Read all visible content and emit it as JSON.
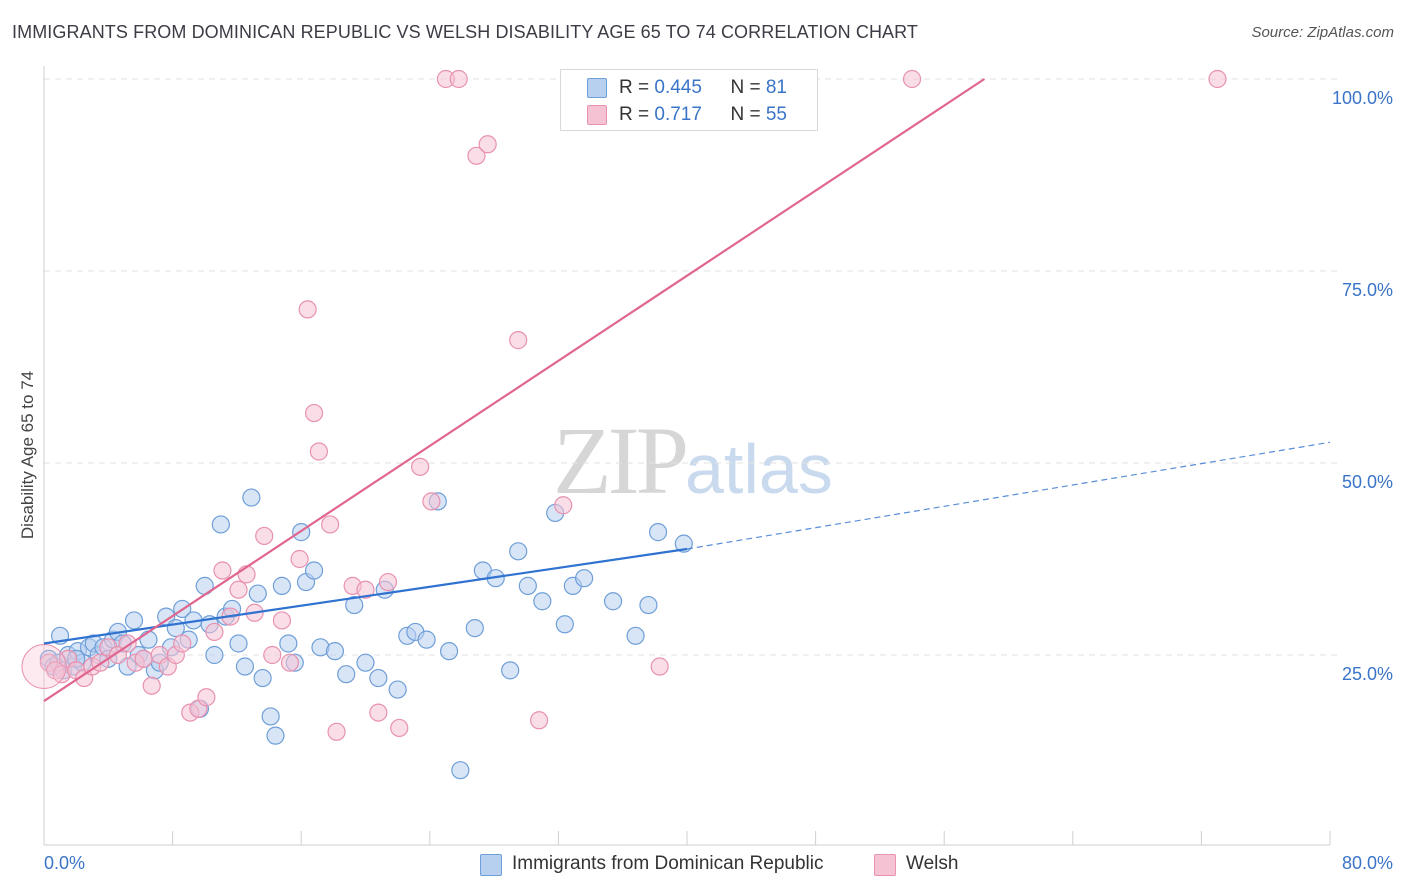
{
  "title": "IMMIGRANTS FROM DOMINICAN REPUBLIC VS WELSH DISABILITY AGE 65 TO 74 CORRELATION CHART",
  "source": "Source: ZipAtlas.com",
  "watermark": {
    "zip": "ZIP",
    "atlas": "atlas"
  },
  "legend": {
    "rows": [
      {
        "r_label": "R = ",
        "r_value": "0.445",
        "n_label": "N = ",
        "n_value": "81"
      },
      {
        "r_label": "R = ",
        "r_value": "0.717",
        "n_label": "N = ",
        "n_value": "55"
      }
    ]
  },
  "bottom_legend": [
    "Immigrants from Dominican Republic",
    "Welsh"
  ],
  "colors": {
    "blue_fill": "#b8d0f0",
    "blue_stroke": "#6f9fd8",
    "blue_line": "#2f72d0",
    "pink_fill": "#f5c2d4",
    "pink_stroke": "#e891b0",
    "pink_line": "#e06690",
    "tick_text": "#3a74c8",
    "grid": "#e2e2e2"
  },
  "chart_data": {
    "type": "scatter",
    "title": "IMMIGRANTS FROM DOMINICAN REPUBLIC VS WELSH DISABILITY AGE 65 TO 74 CORRELATION CHART",
    "xlabel": "",
    "ylabel": "Disability Age 65 to 74",
    "xlim": [
      0,
      80
    ],
    "ylim": [
      0,
      102
    ],
    "x_tick_labels": [
      {
        "value": 0,
        "label": "0.0%"
      },
      {
        "value": 80,
        "label": "80.0%"
      }
    ],
    "y_tick_labels": [
      {
        "value": 25,
        "label": "25.0%"
      },
      {
        "value": 50,
        "label": "50.0%"
      },
      {
        "value": 75,
        "label": "75.0%"
      },
      {
        "value": 100,
        "label": "100.0%"
      }
    ],
    "legend_position": "top-center",
    "grid": true,
    "series": [
      {
        "name": "Immigrants from Dominican Republic",
        "r": 0.445,
        "n": 81,
        "trend": {
          "x": [
            0,
            40
          ],
          "y": [
            26.5,
            38.8
          ],
          "dashed_to": [
            80,
            52.7
          ]
        },
        "points": [
          [
            0.3,
            24.5
          ],
          [
            0.6,
            23.5
          ],
          [
            0.9,
            24
          ],
          [
            1.2,
            23
          ],
          [
            1.5,
            25
          ],
          [
            1.8,
            23.5
          ],
          [
            2.1,
            25.5
          ],
          [
            2.4,
            24
          ],
          [
            2.8,
            26
          ],
          [
            3.1,
            26.5
          ],
          [
            3.4,
            25
          ],
          [
            3.7,
            26
          ],
          [
            4.0,
            24.5
          ],
          [
            4.3,
            27
          ],
          [
            4.6,
            28
          ],
          [
            4.9,
            26.5
          ],
          [
            5.2,
            23.5
          ],
          [
            5.6,
            29.5
          ],
          [
            5.9,
            25
          ],
          [
            6.2,
            24.5
          ],
          [
            6.5,
            27
          ],
          [
            6.9,
            23
          ],
          [
            7.2,
            24
          ],
          [
            7.6,
            30
          ],
          [
            7.9,
            26
          ],
          [
            8.2,
            28.5
          ],
          [
            8.6,
            31
          ],
          [
            9.0,
            27
          ],
          [
            9.3,
            29.5
          ],
          [
            9.7,
            18
          ],
          [
            10.0,
            34
          ],
          [
            10.3,
            29
          ],
          [
            10.6,
            25
          ],
          [
            11.0,
            42
          ],
          [
            11.3,
            30
          ],
          [
            11.7,
            31
          ],
          [
            12.1,
            26.5
          ],
          [
            12.5,
            23.5
          ],
          [
            12.9,
            45.5
          ],
          [
            13.3,
            33
          ],
          [
            13.6,
            22
          ],
          [
            14.1,
            17
          ],
          [
            14.4,
            14.5
          ],
          [
            14.8,
            34
          ],
          [
            15.2,
            26.5
          ],
          [
            15.6,
            24
          ],
          [
            16.0,
            41
          ],
          [
            16.3,
            34.5
          ],
          [
            16.8,
            36
          ],
          [
            17.2,
            26
          ],
          [
            18.1,
            25.5
          ],
          [
            18.8,
            22.5
          ],
          [
            19.3,
            31.5
          ],
          [
            20.0,
            24
          ],
          [
            20.8,
            22
          ],
          [
            21.2,
            33.5
          ],
          [
            22.0,
            20.5
          ],
          [
            22.6,
            27.5
          ],
          [
            23.1,
            28
          ],
          [
            23.8,
            27
          ],
          [
            24.5,
            45
          ],
          [
            25.2,
            25.5
          ],
          [
            25.9,
            10
          ],
          [
            26.8,
            28.5
          ],
          [
            27.3,
            36
          ],
          [
            28.1,
            35
          ],
          [
            29.0,
            23
          ],
          [
            29.5,
            38.5
          ],
          [
            30.1,
            34
          ],
          [
            31.0,
            32
          ],
          [
            31.8,
            43.5
          ],
          [
            32.4,
            29
          ],
          [
            32.9,
            34
          ],
          [
            33.6,
            35
          ],
          [
            35.4,
            32
          ],
          [
            36.8,
            27.5
          ],
          [
            37.6,
            31.5
          ],
          [
            38.2,
            41
          ],
          [
            39.8,
            39.5
          ],
          [
            2.0,
            24.5
          ],
          [
            1.0,
            27.5
          ]
        ]
      },
      {
        "name": "Welsh",
        "r": 0.717,
        "n": 55,
        "trend": {
          "x": [
            0,
            58.5
          ],
          "y": [
            19,
            100
          ]
        },
        "points": [
          [
            0.3,
            24
          ],
          [
            0.7,
            23
          ],
          [
            1.1,
            22.5
          ],
          [
            1.5,
            24.5
          ],
          [
            2.0,
            23
          ],
          [
            2.5,
            22
          ],
          [
            3.0,
            23.5
          ],
          [
            3.5,
            24
          ],
          [
            4.0,
            26
          ],
          [
            4.6,
            25
          ],
          [
            5.2,
            26.5
          ],
          [
            5.7,
            24
          ],
          [
            6.2,
            24.5
          ],
          [
            6.7,
            21
          ],
          [
            7.2,
            25
          ],
          [
            7.7,
            23.5
          ],
          [
            8.2,
            25
          ],
          [
            8.6,
            26.5
          ],
          [
            9.1,
            17.5
          ],
          [
            9.6,
            18
          ],
          [
            10.1,
            19.5
          ],
          [
            10.6,
            28
          ],
          [
            11.1,
            36
          ],
          [
            11.6,
            30
          ],
          [
            12.1,
            33.5
          ],
          [
            12.6,
            35.5
          ],
          [
            13.1,
            30.5
          ],
          [
            13.7,
            40.5
          ],
          [
            14.2,
            25
          ],
          [
            14.8,
            29.5
          ],
          [
            15.3,
            24
          ],
          [
            15.9,
            37.5
          ],
          [
            16.4,
            70
          ],
          [
            16.8,
            56.5
          ],
          [
            17.1,
            51.5
          ],
          [
            17.8,
            42
          ],
          [
            18.2,
            15
          ],
          [
            19.2,
            34
          ],
          [
            20.0,
            33.5
          ],
          [
            20.8,
            17.5
          ],
          [
            21.4,
            34.5
          ],
          [
            22.1,
            15.5
          ],
          [
            23.4,
            49.5
          ],
          [
            24.1,
            45
          ],
          [
            25.0,
            100
          ],
          [
            25.8,
            100
          ],
          [
            26.9,
            90
          ],
          [
            27.6,
            91.5
          ],
          [
            29.5,
            66
          ],
          [
            30.8,
            16.5
          ],
          [
            32.3,
            44.5
          ],
          [
            34.3,
            100
          ],
          [
            38.3,
            23.5
          ],
          [
            54.0,
            100
          ],
          [
            73.0,
            100
          ]
        ]
      }
    ]
  }
}
